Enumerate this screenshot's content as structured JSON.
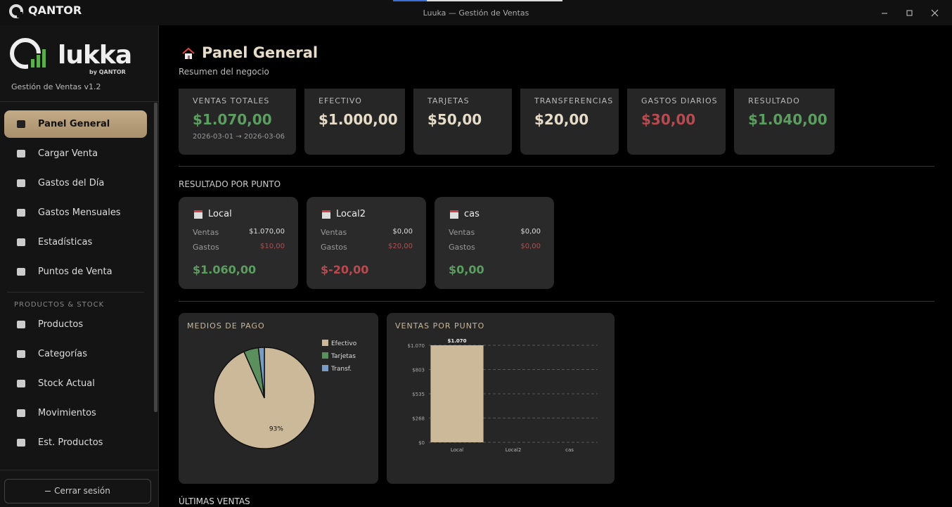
{
  "window": {
    "brand": "QANTOR",
    "title": "Luuka — Gestión de Ventas"
  },
  "sidebar": {
    "logo": "lukka",
    "logo_by": "by QANTOR",
    "version": "Gestión de Ventas v1.2",
    "nav": [
      "Panel General",
      "Cargar Venta",
      "Gastos del Día",
      "Gastos Mensuales",
      "Estadísticas",
      "Puntos de Venta"
    ],
    "section": "PRODUCTOS & STOCK",
    "nav2": [
      "Productos",
      "Categorías",
      "Stock Actual",
      "Movimientos",
      "Est. Productos"
    ],
    "logout": "Cerrar sesión"
  },
  "header": {
    "title": "Panel General",
    "subtitle": "Resumen del negocio"
  },
  "kpis": [
    {
      "label": "VENTAS TOTALES",
      "value": "$1.070,00",
      "range": "2026-03-01 → 2026-03-06"
    },
    {
      "label": "EFECTIVO",
      "value": "$1.000,00"
    },
    {
      "label": "TARJETAS",
      "value": "$50,00"
    },
    {
      "label": "TRANSFERENCIAS",
      "value": "$20,00"
    },
    {
      "label": "GASTOS DIARIOS",
      "value": "$30,00"
    },
    {
      "label": "RESULTADO",
      "value": "$1.040,00"
    }
  ],
  "points": {
    "title": "RESULTADO POR PUNTO",
    "cards": [
      {
        "name": "Local",
        "sales_label": "Ventas",
        "sales": "$1.070,00",
        "expenses_label": "Gastos",
        "expenses": "$10,00",
        "result": "$1.060,00"
      },
      {
        "name": "Local2",
        "sales_label": "Ventas",
        "sales": "$0,00",
        "expenses_label": "Gastos",
        "expenses": "$20,00",
        "result": "$-20,00"
      },
      {
        "name": "cas",
        "sales_label": "Ventas",
        "sales": "$0,00",
        "expenses_label": "Gastos",
        "expenses": "$0,00",
        "result": "$0,00"
      }
    ]
  },
  "chart_data": [
    {
      "type": "pie",
      "title": "MEDIOS DE PAGO",
      "categories": [
        "Efectivo",
        "Tarjetas",
        "Transf."
      ],
      "values": [
        93.4,
        4.7,
        1.9
      ],
      "value_labels": [
        "93%",
        null,
        null
      ],
      "colors": [
        "#cbb99a",
        "#5b8f5e",
        "#7b9cc2"
      ]
    },
    {
      "type": "bar",
      "title": "VENTAS POR PUNTO",
      "categories": [
        "Local",
        "Local2",
        "cas"
      ],
      "values": [
        1070,
        0,
        0
      ],
      "value_labels": [
        "$1.070",
        null,
        null
      ],
      "color": "#cbb99a",
      "ylim": [
        0,
        1070
      ],
      "yticks": [
        {
          "value": 0,
          "label": "$0"
        },
        {
          "value": 267.5,
          "label": "$268"
        },
        {
          "value": 535,
          "label": "$535"
        },
        {
          "value": 802.5,
          "label": "$803"
        },
        {
          "value": 1070,
          "label": "$1.070"
        }
      ],
      "grid": true
    }
  ],
  "recent": {
    "title": "ÚLTIMAS VENTAS"
  }
}
